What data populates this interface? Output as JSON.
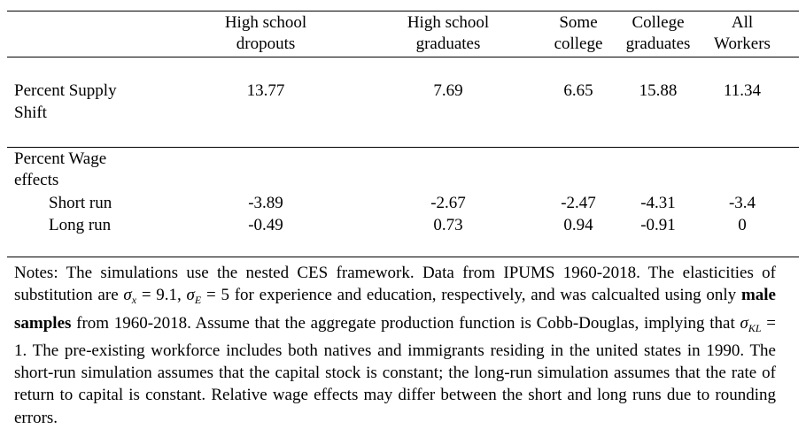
{
  "columns": [
    {
      "line1": "High school",
      "line2": "dropouts"
    },
    {
      "line1": "High school",
      "line2": "graduates"
    },
    {
      "line1": "Some",
      "line2": "college"
    },
    {
      "line1": "College",
      "line2": "graduates"
    },
    {
      "line1": "All",
      "line2": "Workers"
    }
  ],
  "supply": {
    "label_line1": "Percent Supply",
    "label_line2": "Shift",
    "values": [
      "13.77",
      "7.69",
      "6.65",
      "15.88",
      "11.34"
    ]
  },
  "wage": {
    "label_line1": "Percent Wage",
    "label_line2": "effects",
    "short_run": {
      "label": "Short run",
      "values": [
        "-3.89",
        "-2.67",
        "-2.47",
        "-4.31",
        "-3.4"
      ]
    },
    "long_run": {
      "label": "Long run",
      "values": [
        "-0.49",
        "0.73",
        "0.94",
        "-0.91",
        "0"
      ]
    }
  },
  "notes": {
    "p1": "Notes: The simulations use the nested CES framework.  Data from IPUMS 1960-2018. The elasticities of substitution are ",
    "sigma_sym": "σ",
    "sub_x": "x",
    "eq1": " = 9.1, ",
    "sub_e": "E",
    "eq2": " = 5",
    "p2": " for experience and education, respectively, and was calcualted using only ",
    "bold": "male samples",
    "p3": " from 1960-2018.  Assume that the aggregate production function is Cobb-Douglas, implying that ",
    "sub_kl": "KL",
    "eq3": " = 1",
    "p4": ". The pre-existing workforce includes both natives and immigrants residing in the united states in 1990. The short-run simulation assumes that the capital stock is constant; the long-run simulation assumes that the rate of return to capital is constant. Relative wage effects may differ between the short and long runs due to rounding errors."
  }
}
